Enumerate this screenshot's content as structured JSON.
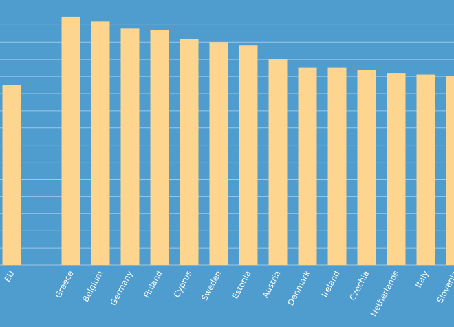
{
  "chart_data": {
    "type": "bar",
    "categories": [
      "EU",
      null,
      "Greece",
      "Belgium",
      "Germany",
      "Finland",
      "Cyprus",
      "Sweden",
      "Estonia",
      "Austria",
      "Denmark",
      "Ireland",
      "Czechia",
      "Netherlands",
      "Italy",
      "Slovenia"
    ],
    "values": [
      10.5,
      null,
      14.5,
      14.2,
      13.8,
      13.7,
      13.2,
      13.0,
      12.8,
      12.0,
      11.5,
      11.5,
      11.4,
      11.2,
      11.1,
      11.0
    ],
    "color": "#fdd58e",
    "ylim": [
      0,
      15.5
    ],
    "yticks": [
      0,
      1,
      2,
      3,
      4,
      5,
      6,
      7,
      8,
      9,
      10,
      11,
      12,
      13,
      14,
      15
    ],
    "grid": true
  }
}
